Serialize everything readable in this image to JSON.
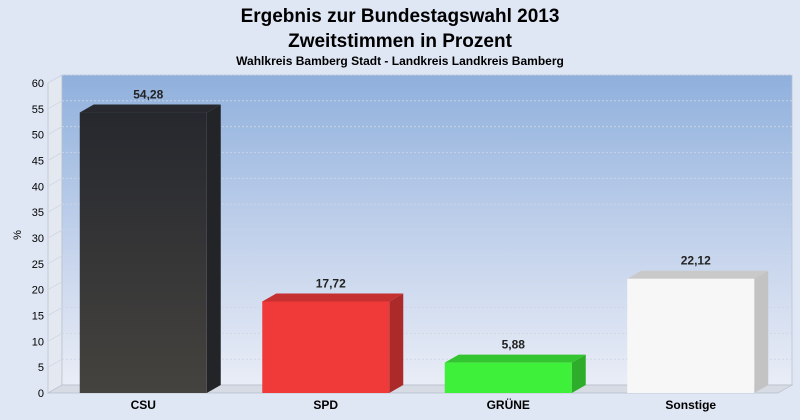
{
  "chart_data": {
    "type": "bar",
    "title": "Ergebnis zur Bundestagswahl 2013",
    "subtitle": "Zweitstimmen in Prozent",
    "caption": "Wahlkreis Bamberg Stadt - Landkreis Landkreis Bamberg",
    "xlabel": "",
    "ylabel": "%",
    "ylim": [
      0,
      60
    ],
    "yticks": [
      0,
      5,
      10,
      15,
      20,
      25,
      30,
      35,
      40,
      45,
      50,
      55,
      60
    ],
    "grid": true,
    "categories": [
      "CSU",
      "SPD",
      "GRÜNE",
      "Sonstige"
    ],
    "values": [
      54.28,
      17.72,
      5.88,
      22.12
    ],
    "value_labels": [
      "54,28",
      "17,72",
      "5,88",
      "22,12"
    ],
    "colors": [
      "#2f3238",
      "#f03a3a",
      "#3ef03a",
      "#f7f7f7"
    ]
  }
}
